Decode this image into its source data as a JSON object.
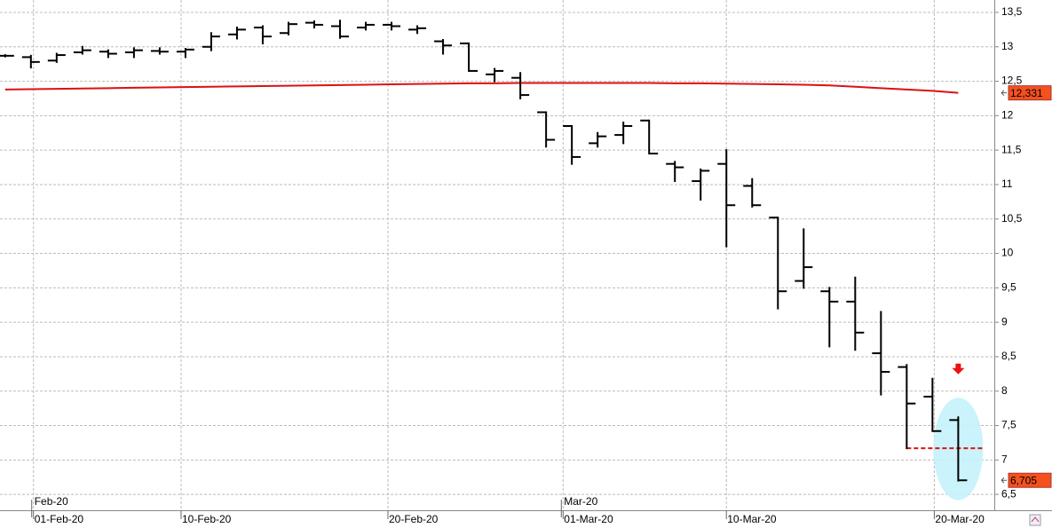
{
  "chart_data": {
    "type": "ohlc",
    "color": "#000000",
    "x": [
      0,
      1,
      2,
      3,
      4,
      5,
      6,
      7,
      8,
      9,
      10,
      11,
      12,
      13,
      14,
      15,
      16,
      17,
      18,
      19,
      20,
      21,
      22,
      23,
      24,
      25,
      26,
      27,
      28,
      29,
      30,
      31,
      32,
      33,
      34,
      35,
      36,
      37
    ],
    "open": [
      12.87,
      12.85,
      12.8,
      12.92,
      12.93,
      12.92,
      12.94,
      12.93,
      13.0,
      13.18,
      13.28,
      13.2,
      13.35,
      13.3,
      13.28,
      13.32,
      13.25,
      13.08,
      13.05,
      12.6,
      12.55,
      12.05,
      11.85,
      11.6,
      11.72,
      11.93,
      11.3,
      11.05,
      11.3,
      10.98,
      10.52,
      9.6,
      9.45,
      9.3,
      8.55,
      8.35,
      7.92,
      7.58
    ],
    "high": [
      12.88,
      12.87,
      12.9,
      13.0,
      12.95,
      12.98,
      12.98,
      12.97,
      13.2,
      13.28,
      13.3,
      13.35,
      13.37,
      13.38,
      13.35,
      13.35,
      13.3,
      13.1,
      13.05,
      12.68,
      12.62,
      12.05,
      11.85,
      11.75,
      11.9,
      11.93,
      11.33,
      11.22,
      11.5,
      11.08,
      10.52,
      10.35,
      9.5,
      9.65,
      9.15,
      8.38,
      8.18,
      7.62
    ],
    "low": [
      12.86,
      12.7,
      12.78,
      12.9,
      12.85,
      12.85,
      12.9,
      12.85,
      12.95,
      13.12,
      13.05,
      13.18,
      13.28,
      13.13,
      13.25,
      13.25,
      13.2,
      12.9,
      12.65,
      12.5,
      12.25,
      11.55,
      11.3,
      11.55,
      11.6,
      11.45,
      11.05,
      10.78,
      10.1,
      10.68,
      9.2,
      9.5,
      8.65,
      8.6,
      7.95,
      7.17,
      7.42,
      6.7
    ],
    "close": [
      12.87,
      12.78,
      12.88,
      12.95,
      12.9,
      12.95,
      12.93,
      12.96,
      13.15,
      13.25,
      13.15,
      13.33,
      13.32,
      13.15,
      13.32,
      13.3,
      13.27,
      13.02,
      12.65,
      12.65,
      12.3,
      11.65,
      11.4,
      11.7,
      11.85,
      11.45,
      11.25,
      11.2,
      10.7,
      10.7,
      9.45,
      9.8,
      9.3,
      8.85,
      8.28,
      7.82,
      7.42,
      6.705
    ],
    "moving_average": {
      "color": "#dd1111",
      "values": [
        12.38,
        12.385,
        12.39,
        12.395,
        12.4,
        12.405,
        12.41,
        12.415,
        12.42,
        12.425,
        12.43,
        12.435,
        12.44,
        12.445,
        12.45,
        12.455,
        12.46,
        12.465,
        12.47,
        12.47,
        12.475,
        12.475,
        12.475,
        12.475,
        12.475,
        12.475,
        12.47,
        12.47,
        12.465,
        12.46,
        12.455,
        12.45,
        12.44,
        12.42,
        12.4,
        12.38,
        12.36,
        12.331
      ]
    },
    "last_price": {
      "value": 6.705,
      "label": "6,705"
    },
    "ma_last": {
      "value": 12.331,
      "label": "12,331"
    },
    "support_level": 7.17,
    "arrow_at": 8.27,
    "ylim": [
      6.27,
      13.68
    ],
    "yticks": [
      {
        "value": 6.5,
        "label": "6,5"
      },
      7,
      {
        "value": 7.5,
        "label": "7,5"
      },
      8,
      {
        "value": 8.5,
        "label": "8,5"
      },
      9,
      {
        "value": 9.5,
        "label": "9,5"
      },
      10,
      {
        "value": 10.5,
        "label": "10,5"
      },
      11,
      {
        "value": 11.5,
        "label": "11,5"
      },
      12,
      {
        "value": 12.5,
        "label": "12,5"
      },
      13,
      {
        "value": 13.5,
        "label": "13,5"
      }
    ],
    "xlim": [
      -0.2,
      38.4
    ],
    "xticks": [
      {
        "value": 1.1,
        "label": "01-Feb-20"
      },
      {
        "value": 6.83,
        "label": "10-Feb-20"
      },
      {
        "value": 14.86,
        "label": "20-Feb-20"
      },
      {
        "value": 21.66,
        "label": "01-Mar-20"
      },
      {
        "value": 28.0,
        "label": "10-Mar-20"
      },
      {
        "value": 36.07,
        "label": "20-Mar-20"
      }
    ],
    "month_ticks": [
      {
        "value": 1.1,
        "label": "Feb-20"
      },
      {
        "value": 21.66,
        "label": "Mar-20"
      }
    ],
    "grid": true
  }
}
